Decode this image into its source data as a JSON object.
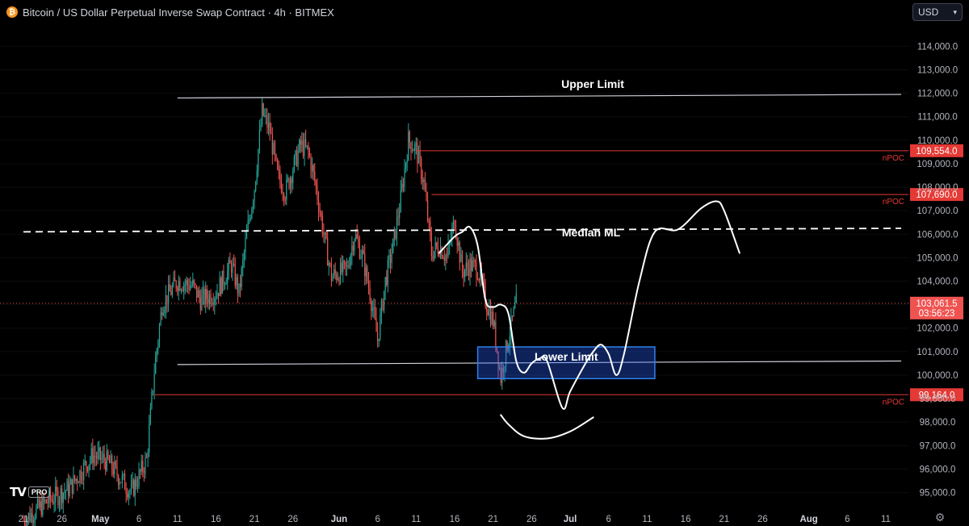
{
  "header": {
    "title": "Bitcoin / US Dollar Perpetual Inverse Swap Contract · 4h · BITMEX",
    "icon": "bitcoin-icon"
  },
  "currency_button": {
    "label": "USD",
    "icon": "chevron-down-icon"
  },
  "logo": {
    "mark": "TV",
    "badge": "PRO"
  },
  "colors": {
    "up": "#26a69a",
    "down": "#ef5350",
    "background": "#000000",
    "level_line": "#e53935",
    "level_label_bg": "#e53935",
    "box_fill": "#2962ff",
    "box_border": "#2f80ed"
  },
  "chart_data": {
    "type": "candlestick",
    "timeframe": "4h",
    "ylim": [
      94500,
      115000
    ],
    "y_ticks": [
      95000,
      96000,
      97000,
      98000,
      99000,
      100000,
      101000,
      102000,
      103000,
      104000,
      105000,
      106000,
      107000,
      108000,
      109000,
      110000,
      111000,
      112000,
      113000,
      114000
    ],
    "y_tick_labels": [
      "95,000.0",
      "96,000.0",
      "97,000.0",
      "98,000.0",
      "99,000.0",
      "100,000.0",
      "101,000.0",
      "102,000.0",
      "103,000.0",
      "104,000.0",
      "105,000.0",
      "106,000.0",
      "107,000.0",
      "108,000.0",
      "109,000.0",
      "110,000.0",
      "111,000.0",
      "112,000.0",
      "113,000.0",
      "114,000.0"
    ],
    "x_ticks": [
      {
        "label": "21",
        "date": "2025-04-21"
      },
      {
        "label": "26",
        "date": "2025-04-26"
      },
      {
        "label": "May",
        "date": "2025-05-01"
      },
      {
        "label": "6",
        "date": "2025-05-06"
      },
      {
        "label": "11",
        "date": "2025-05-11"
      },
      {
        "label": "16",
        "date": "2025-05-16"
      },
      {
        "label": "21",
        "date": "2025-05-21"
      },
      {
        "label": "26",
        "date": "2025-05-26"
      },
      {
        "label": "Jun",
        "date": "2025-06-01"
      },
      {
        "label": "6",
        "date": "2025-06-06"
      },
      {
        "label": "11",
        "date": "2025-06-11"
      },
      {
        "label": "16",
        "date": "2025-06-16"
      },
      {
        "label": "21",
        "date": "2025-06-21"
      },
      {
        "label": "26",
        "date": "2025-06-26"
      },
      {
        "label": "Jul",
        "date": "2025-07-01"
      },
      {
        "label": "6",
        "date": "2025-07-06"
      },
      {
        "label": "11",
        "date": "2025-07-11"
      },
      {
        "label": "16",
        "date": "2025-07-16"
      },
      {
        "label": "21",
        "date": "2025-07-21"
      },
      {
        "label": "26",
        "date": "2025-07-26"
      },
      {
        "label": "Aug",
        "date": "2025-08-01"
      },
      {
        "label": "6",
        "date": "2025-08-06"
      },
      {
        "label": "11",
        "date": "2025-08-11"
      }
    ],
    "price_path": [
      [
        "2025-04-21",
        93800
      ],
      [
        "2025-04-24",
        94600
      ],
      [
        "2025-04-27",
        95200
      ],
      [
        "2025-04-30",
        96600
      ],
      [
        "2025-05-02",
        96300
      ],
      [
        "2025-05-05",
        95000
      ],
      [
        "2025-05-07",
        96400
      ],
      [
        "2025-05-08",
        100200
      ],
      [
        "2025-05-09",
        103000
      ],
      [
        "2025-05-11",
        104000
      ],
      [
        "2025-05-13",
        103800
      ],
      [
        "2025-05-14",
        103200
      ],
      [
        "2025-05-16",
        103500
      ],
      [
        "2025-05-18",
        104700
      ],
      [
        "2025-05-19",
        103500
      ],
      [
        "2025-05-20",
        106000
      ],
      [
        "2025-05-21",
        108000
      ],
      [
        "2025-05-22",
        111200
      ],
      [
        "2025-05-23",
        110400
      ],
      [
        "2025-05-24",
        108500
      ],
      [
        "2025-05-25",
        107800
      ],
      [
        "2025-05-27",
        109800
      ],
      [
        "2025-05-28",
        109500
      ],
      [
        "2025-05-29",
        108000
      ],
      [
        "2025-05-30",
        106000
      ],
      [
        "2025-05-31",
        104200
      ],
      [
        "2025-06-02",
        104500
      ],
      [
        "2025-06-03",
        106000
      ],
      [
        "2025-06-04",
        105100
      ],
      [
        "2025-06-05",
        103500
      ],
      [
        "2025-06-06",
        101500
      ],
      [
        "2025-06-07",
        104000
      ],
      [
        "2025-06-08",
        105500
      ],
      [
        "2025-06-09",
        107500
      ],
      [
        "2025-06-10",
        110000
      ],
      [
        "2025-06-11",
        109600
      ],
      [
        "2025-06-12",
        108200
      ],
      [
        "2025-06-13",
        105200
      ],
      [
        "2025-06-14",
        105500
      ],
      [
        "2025-06-15",
        105000
      ],
      [
        "2025-06-16",
        106600
      ],
      [
        "2025-06-17",
        104400
      ],
      [
        "2025-06-18",
        104700
      ],
      [
        "2025-06-19",
        104500
      ],
      [
        "2025-06-20",
        103200
      ],
      [
        "2025-06-21",
        102300
      ],
      [
        "2025-06-22",
        99900
      ],
      [
        "2025-06-23",
        101600
      ],
      [
        "2025-06-24",
        103061.5
      ]
    ],
    "last_price": 103061.5,
    "last_price_label": "103,061.5",
    "countdown_label": "03:56:23",
    "levels": [
      {
        "name": "nPOC",
        "price": 109554,
        "label": "109,554.0",
        "from": "2025-06-11"
      },
      {
        "name": "nPOC",
        "price": 107690,
        "label": "107,690.0",
        "from": "2025-06-13"
      },
      {
        "name": "nPOC",
        "price": 99164,
        "label": "99,164.0",
        "from": "2025-05-08"
      }
    ],
    "channel": {
      "upper": {
        "label": "Upper Limit",
        "from": [
          "2025-05-11",
          111800
        ],
        "to": [
          "2025-08-13",
          111950
        ]
      },
      "median": {
        "label": "Median ML",
        "from": [
          "2025-04-21",
          106100
        ],
        "to": [
          "2025-08-13",
          106250
        ]
      },
      "lower": {
        "label": "Lower Limit",
        "from": [
          "2025-05-11",
          100450
        ],
        "to": [
          "2025-08-13",
          100600
        ]
      }
    },
    "box": {
      "from": [
        "2025-06-19",
        101200
      ],
      "to": [
        "2025-07-12",
        99850
      ]
    },
    "projection_path": [
      [
        "2025-06-14",
        105200
      ],
      [
        "2025-06-16",
        105900
      ],
      [
        "2025-06-17",
        106100
      ],
      [
        "2025-06-18",
        106300
      ],
      [
        "2025-06-19",
        105500
      ],
      [
        "2025-06-20",
        103200
      ],
      [
        "2025-06-21",
        102900
      ],
      [
        "2025-06-22",
        103000
      ],
      [
        "2025-06-23",
        102600
      ],
      [
        "2025-06-24",
        100600
      ],
      [
        "2025-06-25",
        100100
      ],
      [
        "2025-06-26",
        100500
      ],
      [
        "2025-06-27",
        100700
      ],
      [
        "2025-06-28",
        100600
      ],
      [
        "2025-06-30",
        98600
      ],
      [
        "2025-07-01",
        99300
      ],
      [
        "2025-07-03",
        100500
      ],
      [
        "2025-07-04",
        101000
      ],
      [
        "2025-07-05",
        101300
      ],
      [
        "2025-07-06",
        100900
      ],
      [
        "2025-07-07",
        100000
      ],
      [
        "2025-07-08",
        100900
      ],
      [
        "2025-07-10",
        104000
      ],
      [
        "2025-07-12",
        106100
      ],
      [
        "2025-07-15",
        106200
      ],
      [
        "2025-07-18",
        107100
      ],
      [
        "2025-07-20",
        107400
      ],
      [
        "2025-07-21",
        107000
      ],
      [
        "2025-07-23",
        105200
      ]
    ],
    "bottom_curve": [
      [
        "2025-06-22",
        98300
      ],
      [
        "2025-06-23",
        97900
      ],
      [
        "2025-06-25",
        97400
      ],
      [
        "2025-06-28",
        97300
      ],
      [
        "2025-07-01",
        97600
      ],
      [
        "2025-07-04",
        98200
      ]
    ]
  }
}
